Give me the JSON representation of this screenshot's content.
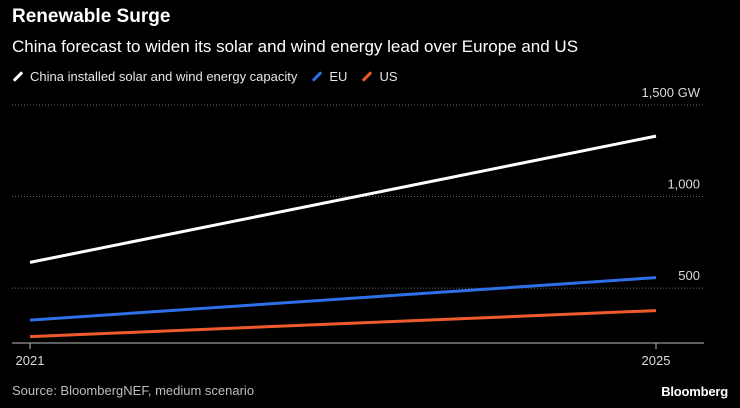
{
  "chart_data": {
    "type": "line",
    "title": "Renewable Surge",
    "subtitle": "China forecast to widen its solar and wind energy lead over Europe and US",
    "x": [
      2021,
      2025
    ],
    "x_tick_labels": [
      "2021",
      "2025"
    ],
    "y_ticks": [
      {
        "value": 500,
        "label": "500"
      },
      {
        "value": 1000,
        "label": "1,000"
      },
      {
        "value": 1500,
        "label": "1,500 GW"
      }
    ],
    "ylim": [
      200,
      1500
    ],
    "grid": true,
    "series": [
      {
        "name": "China installed solar and wind energy capacity",
        "color": "#ffffff",
        "values": [
          640,
          1330
        ]
      },
      {
        "name": "EU",
        "color": "#2f6fe8",
        "values": [
          325,
          557
        ]
      },
      {
        "name": "US",
        "color": "#ee5a2c",
        "values": [
          235,
          377
        ]
      }
    ]
  },
  "footer": {
    "source": "Source: BloombergNEF, medium scenario",
    "brand": "Bloomberg"
  }
}
